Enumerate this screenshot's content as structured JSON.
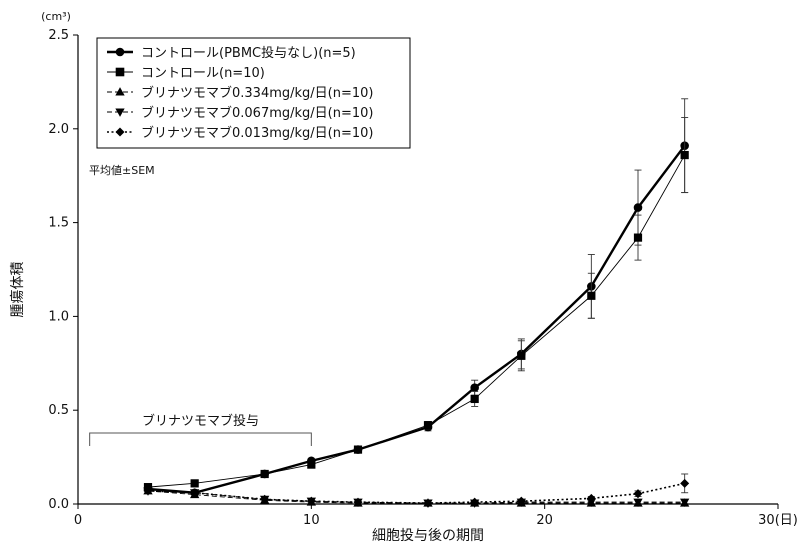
{
  "chart_data": {
    "type": "line",
    "title": "",
    "xlabel": "細胞投与後の期間",
    "ylabel": "腫瘍体積",
    "x_unit_label": "30(日)",
    "y_unit_label": "(cm³)",
    "xlim": [
      0,
      30
    ],
    "ylim": [
      0,
      2.5
    ],
    "x_ticks": [
      "0",
      "10",
      "20"
    ],
    "x_tick_values": [
      0,
      10,
      20
    ],
    "y_ticks": [
      "0.0",
      "0.5",
      "1.0",
      "1.5",
      "2.0",
      "2.5"
    ],
    "y_tick_values": [
      0,
      0.5,
      1.0,
      1.5,
      2.0,
      2.5
    ],
    "grid": false,
    "legend_position": "top-left",
    "stat_note": "平均値±SEM",
    "annotation": {
      "text": "ブリナツモマブ投与",
      "x_start": 0.5,
      "x_end": 10
    },
    "series": [
      {
        "name": "コントロール(PBMC投与なし)(n=5)",
        "marker": "circle",
        "line_style": "solid",
        "line_width": "thick",
        "color": "#000000",
        "x": [
          3,
          5,
          8,
          10,
          12,
          15,
          17,
          19,
          22,
          24,
          26
        ],
        "y": [
          0.08,
          0.06,
          0.16,
          0.23,
          0.29,
          0.41,
          0.62,
          0.8,
          1.16,
          1.58,
          1.91
        ],
        "err": [
          0.01,
          0.01,
          0.01,
          0.01,
          0.01,
          0.02,
          0.04,
          0.08,
          0.17,
          0.2,
          0.25
        ]
      },
      {
        "name": "コントロール(n=10)",
        "marker": "square",
        "line_style": "solid",
        "line_width": "thin",
        "color": "#000000",
        "x": [
          3,
          5,
          8,
          10,
          12,
          15,
          17,
          19,
          22,
          24,
          26
        ],
        "y": [
          0.09,
          0.11,
          0.16,
          0.21,
          0.29,
          0.42,
          0.56,
          0.79,
          1.11,
          1.42,
          1.86
        ],
        "err": [
          0.01,
          0.01,
          0.01,
          0.01,
          0.01,
          0.02,
          0.04,
          0.08,
          0.12,
          0.12,
          0.2
        ]
      },
      {
        "name": "ブリナツモマブ0.334mg/kg/日(n=10)",
        "marker": "triangle-up",
        "line_style": "dashed",
        "line_width": "thin",
        "color": "#000000",
        "x": [
          3,
          5,
          8,
          10,
          12,
          15,
          17,
          19,
          22,
          24,
          26
        ],
        "y": [
          0.07,
          0.05,
          0.02,
          0.01,
          0.005,
          0.005,
          0.005,
          0.005,
          0.005,
          0.005,
          0.005
        ],
        "err": [
          0.005,
          0.005,
          0.005,
          0.003,
          0.002,
          0.002,
          0.002,
          0.002,
          0.002,
          0.002,
          0.002
        ]
      },
      {
        "name": "ブリナツモマブ0.067mg/kg/日(n=10)",
        "marker": "triangle-down",
        "line_style": "dashed",
        "line_width": "thin",
        "color": "#000000",
        "x": [
          3,
          5,
          8,
          10,
          12,
          15,
          17,
          19,
          22,
          24,
          26
        ],
        "y": [
          0.07,
          0.06,
          0.025,
          0.015,
          0.01,
          0.005,
          0.005,
          0.01,
          0.01,
          0.01,
          0.01
        ],
        "err": [
          0.005,
          0.005,
          0.005,
          0.003,
          0.002,
          0.002,
          0.002,
          0.002,
          0.002,
          0.002,
          0.002
        ]
      },
      {
        "name": "ブリナツモマブ0.013mg/kg/日(n=10)",
        "marker": "diamond",
        "line_style": "dotted",
        "line_width": "medium",
        "color": "#000000",
        "x": [
          3,
          5,
          8,
          10,
          12,
          15,
          17,
          19,
          22,
          24,
          26
        ],
        "y": [
          0.07,
          0.06,
          0.025,
          0.015,
          0.01,
          0.005,
          0.01,
          0.015,
          0.03,
          0.055,
          0.11
        ],
        "err": [
          0.005,
          0.005,
          0.005,
          0.003,
          0.002,
          0.003,
          0.005,
          0.007,
          0.01,
          0.015,
          0.05
        ]
      }
    ]
  }
}
